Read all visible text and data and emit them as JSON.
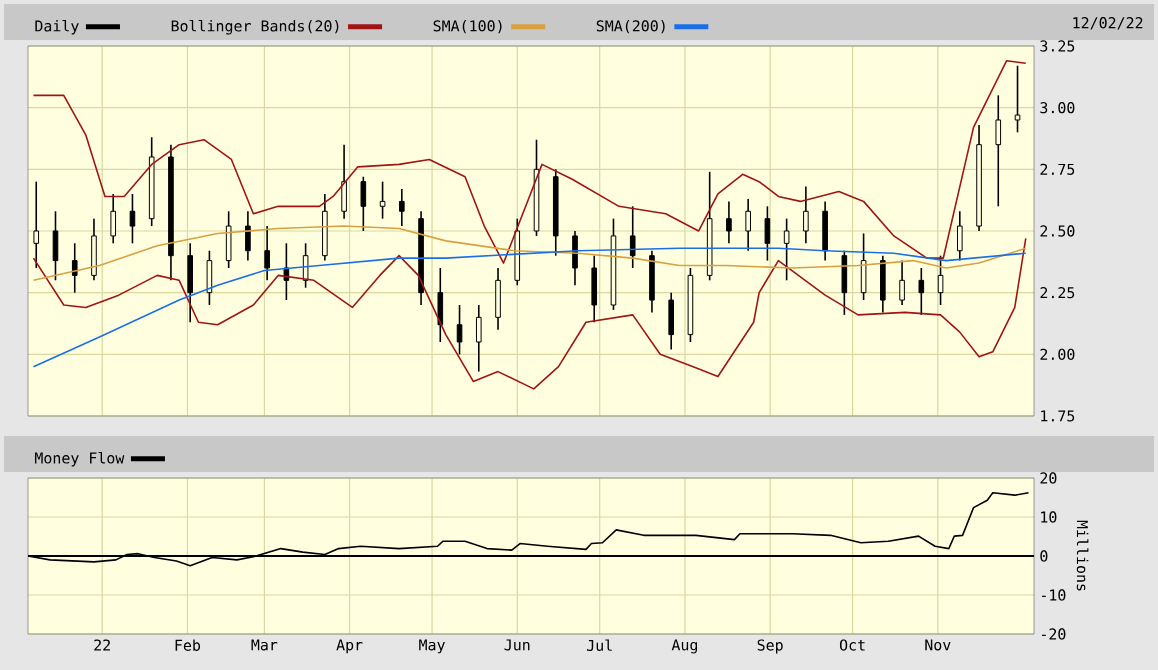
{
  "chart_data": [
    {
      "type": "candlestick",
      "annotations": [
        "12/02/22"
      ],
      "xlim": [
        "2021-12-05",
        "2022-12-06"
      ],
      "xticks": [
        {
          "value": "2022-01-01",
          "label": null
        },
        {
          "value": "2022-02-01",
          "label": null
        },
        {
          "value": "2022-03-01",
          "label": null
        },
        {
          "value": "2022-04-01",
          "label": null
        },
        {
          "value": "2022-05-01",
          "label": null
        },
        {
          "value": "2022-06-01",
          "label": null
        },
        {
          "value": "2022-07-01",
          "label": null
        },
        {
          "value": "2022-08-01",
          "label": null
        },
        {
          "value": "2022-09-01",
          "label": null
        },
        {
          "value": "2022-10-01",
          "label": null
        },
        {
          "value": "2022-11-01",
          "label": null
        }
      ],
      "ylim": [
        1.75,
        3.25
      ],
      "yticks": [
        {
          "value": 1.75,
          "label": "1.75"
        },
        {
          "value": 2,
          "label": "2.00"
        },
        {
          "value": 2.25,
          "label": "2.25"
        },
        {
          "value": 2.5,
          "label": "2.50"
        },
        {
          "value": 2.75,
          "label": "2.75"
        },
        {
          "value": 3,
          "label": "3.00"
        },
        {
          "value": 3.25,
          "label": "3.25"
        }
      ],
      "grid": true,
      "legend": "top",
      "tick_labels": "y",
      "series": [
        {
          "type": "candlestick",
          "name": "Daily",
          "color": "#000000",
          "x": [
            "2021-12-08",
            "2021-12-15",
            "2021-12-22",
            "2021-12-29",
            "2022-01-05",
            "2022-01-12",
            "2022-01-19",
            "2022-01-26",
            "2022-02-02",
            "2022-02-09",
            "2022-02-16",
            "2022-02-23",
            "2022-03-02",
            "2022-03-09",
            "2022-03-16",
            "2022-03-23",
            "2022-03-30",
            "2022-04-06",
            "2022-04-13",
            "2022-04-20",
            "2022-04-27",
            "2022-05-04",
            "2022-05-11",
            "2022-05-18",
            "2022-05-25",
            "2022-06-01",
            "2022-06-08",
            "2022-06-15",
            "2022-06-22",
            "2022-06-29",
            "2022-07-06",
            "2022-07-13",
            "2022-07-20",
            "2022-07-27",
            "2022-08-03",
            "2022-08-10",
            "2022-08-17",
            "2022-08-24",
            "2022-08-31",
            "2022-09-07",
            "2022-09-14",
            "2022-09-21",
            "2022-09-28",
            "2022-10-05",
            "2022-10-12",
            "2022-10-19",
            "2022-10-26",
            "2022-11-02",
            "2022-11-09",
            "2022-11-16",
            "2022-11-23",
            "2022-11-30"
          ],
          "ohlc": [
            [
              2.45,
              2.7,
              2.35,
              2.5
            ],
            [
              2.5,
              2.58,
              2.3,
              2.38
            ],
            [
              2.38,
              2.45,
              2.25,
              2.32
            ],
            [
              2.32,
              2.55,
              2.3,
              2.48
            ],
            [
              2.48,
              2.65,
              2.45,
              2.58
            ],
            [
              2.58,
              2.65,
              2.45,
              2.52
            ],
            [
              2.55,
              2.88,
              2.52,
              2.8
            ],
            [
              2.8,
              2.85,
              2.3,
              2.4
            ],
            [
              2.4,
              2.45,
              2.13,
              2.25
            ],
            [
              2.25,
              2.42,
              2.2,
              2.38
            ],
            [
              2.38,
              2.58,
              2.35,
              2.52
            ],
            [
              2.52,
              2.58,
              2.38,
              2.42
            ],
            [
              2.42,
              2.52,
              2.3,
              2.35
            ],
            [
              2.35,
              2.45,
              2.22,
              2.3
            ],
            [
              2.3,
              2.45,
              2.27,
              2.4
            ],
            [
              2.4,
              2.65,
              2.38,
              2.58
            ],
            [
              2.58,
              2.85,
              2.55,
              2.7
            ],
            [
              2.7,
              2.72,
              2.5,
              2.6
            ],
            [
              2.6,
              2.7,
              2.55,
              2.62
            ],
            [
              2.62,
              2.67,
              2.52,
              2.58
            ],
            [
              2.55,
              2.58,
              2.2,
              2.25
            ],
            [
              2.25,
              2.35,
              2.05,
              2.12
            ],
            [
              2.12,
              2.2,
              2.0,
              2.05
            ],
            [
              2.05,
              2.2,
              1.93,
              2.15
            ],
            [
              2.15,
              2.35,
              2.1,
              2.3
            ],
            [
              2.3,
              2.55,
              2.28,
              2.5
            ],
            [
              2.5,
              2.87,
              2.48,
              2.75
            ],
            [
              2.72,
              2.75,
              2.4,
              2.48
            ],
            [
              2.48,
              2.5,
              2.28,
              2.35
            ],
            [
              2.35,
              2.4,
              2.13,
              2.2
            ],
            [
              2.2,
              2.55,
              2.18,
              2.48
            ],
            [
              2.48,
              2.6,
              2.35,
              2.4
            ],
            [
              2.4,
              2.42,
              2.17,
              2.22
            ],
            [
              2.22,
              2.25,
              2.02,
              2.08
            ],
            [
              2.08,
              2.35,
              2.05,
              2.32
            ],
            [
              2.32,
              2.74,
              2.3,
              2.55
            ],
            [
              2.55,
              2.62,
              2.45,
              2.5
            ],
            [
              2.5,
              2.63,
              2.42,
              2.58
            ],
            [
              2.55,
              2.6,
              2.38,
              2.45
            ],
            [
              2.45,
              2.55,
              2.3,
              2.5
            ],
            [
              2.5,
              2.68,
              2.45,
              2.58
            ],
            [
              2.58,
              2.62,
              2.38,
              2.42
            ],
            [
              2.4,
              2.42,
              2.16,
              2.25
            ],
            [
              2.25,
              2.49,
              2.22,
              2.38
            ],
            [
              2.38,
              2.4,
              2.17,
              2.22
            ],
            [
              2.22,
              2.38,
              2.2,
              2.3
            ],
            [
              2.3,
              2.35,
              2.16,
              2.25
            ],
            [
              2.25,
              2.4,
              2.2,
              2.32
            ],
            [
              2.42,
              2.58,
              2.38,
              2.52
            ],
            [
              2.52,
              2.93,
              2.5,
              2.85
            ],
            [
              2.85,
              3.05,
              2.6,
              2.95
            ],
            [
              2.95,
              3.17,
              2.9,
              2.97
            ]
          ]
        },
        {
          "type": "line",
          "name": "Bollinger Bands(20)",
          "color": "#a01414",
          "x": [
            "2021-12-07",
            "2021-12-18",
            "2021-12-26",
            "2022-01-02",
            "2022-01-09",
            "2022-01-19",
            "2022-01-29",
            "2022-02-07",
            "2022-02-17",
            "2022-02-25",
            "2022-03-06",
            "2022-03-21",
            "2022-03-26",
            "2022-04-04",
            "2022-04-19",
            "2022-04-30",
            "2022-05-13",
            "2022-05-20",
            "2022-05-27",
            "2022-06-03",
            "2022-06-10",
            "2022-06-21",
            "2022-07-08",
            "2022-07-25",
            "2022-08-06",
            "2022-08-13",
            "2022-08-22",
            "2022-08-28",
            "2022-09-04",
            "2022-09-12",
            "2022-09-26",
            "2022-10-05",
            "2022-10-16",
            "2022-10-28",
            "2022-11-03",
            "2022-11-14",
            "2022-11-26",
            "2022-12-03"
          ],
          "values": [
            3.05,
            3.05,
            2.89,
            2.64,
            2.64,
            2.77,
            2.85,
            2.87,
            2.79,
            2.57,
            2.6,
            2.6,
            2.64,
            2.76,
            2.77,
            2.79,
            2.72,
            2.52,
            2.37,
            2.57,
            2.77,
            2.71,
            2.6,
            2.57,
            2.5,
            2.65,
            2.73,
            2.7,
            2.64,
            2.62,
            2.66,
            2.62,
            2.48,
            2.39,
            2.39,
            2.92,
            3.19,
            3.18
          ]
        },
        {
          "type": "line",
          "color": "#a01414",
          "x": [
            "2021-12-07",
            "2021-12-18",
            "2021-12-26",
            "2022-01-07",
            "2022-01-21",
            "2022-01-29",
            "2022-02-05",
            "2022-02-12",
            "2022-02-25",
            "2022-03-06",
            "2022-03-19",
            "2022-04-02",
            "2022-04-12",
            "2022-04-19",
            "2022-04-26",
            "2022-05-06",
            "2022-05-16",
            "2022-05-25",
            "2022-06-07",
            "2022-06-16",
            "2022-06-26",
            "2022-07-13",
            "2022-07-23",
            "2022-08-04",
            "2022-08-13",
            "2022-08-26",
            "2022-08-28",
            "2022-09-04",
            "2022-09-21",
            "2022-10-03",
            "2022-10-20",
            "2022-11-02",
            "2022-11-09",
            "2022-11-16",
            "2022-11-21",
            "2022-11-29",
            "2022-12-03"
          ],
          "values": [
            2.39,
            2.2,
            2.19,
            2.24,
            2.32,
            2.3,
            2.13,
            2.12,
            2.2,
            2.32,
            2.3,
            2.19,
            2.32,
            2.4,
            2.32,
            2.08,
            1.89,
            1.93,
            1.86,
            1.95,
            2.13,
            2.16,
            2.0,
            1.95,
            1.91,
            2.13,
            2.25,
            2.38,
            2.24,
            2.16,
            2.17,
            2.16,
            2.09,
            1.99,
            2.01,
            2.19,
            2.47
          ]
        },
        {
          "type": "line",
          "name": "SMA(100)",
          "color": "#d9a040",
          "x": [
            "2021-12-07",
            "2021-12-31",
            "2022-01-21",
            "2022-02-12",
            "2022-03-06",
            "2022-03-30",
            "2022-04-19",
            "2022-05-06",
            "2022-05-31",
            "2022-06-23",
            "2022-07-13",
            "2022-07-30",
            "2022-08-16",
            "2022-09-09",
            "2022-10-03",
            "2022-10-23",
            "2022-11-04",
            "2022-11-16",
            "2022-12-03"
          ],
          "values": [
            2.3,
            2.36,
            2.44,
            2.49,
            2.51,
            2.52,
            2.51,
            2.46,
            2.42,
            2.41,
            2.39,
            2.36,
            2.36,
            2.35,
            2.36,
            2.38,
            2.35,
            2.37,
            2.43
          ]
        },
        {
          "type": "line",
          "name": "SMA(200)",
          "color": "#1a6fe8",
          "x": [
            "2021-12-07",
            "2021-12-31",
            "2022-01-29",
            "2022-02-12",
            "2022-03-01",
            "2022-03-21",
            "2022-04-19",
            "2022-05-06",
            "2022-06-23",
            "2022-07-30",
            "2022-09-04",
            "2022-09-21",
            "2022-10-16",
            "2022-11-04",
            "2022-12-03"
          ],
          "values": [
            1.95,
            2.07,
            2.22,
            2.28,
            2.34,
            2.36,
            2.39,
            2.39,
            2.42,
            2.43,
            2.43,
            2.42,
            2.41,
            2.38,
            2.41
          ]
        }
      ]
    },
    {
      "type": "line",
      "xlim": [
        "2021-12-05",
        "2022-12-06"
      ],
      "xticks": [
        {
          "value": "2022-01-01",
          "label": "22"
        },
        {
          "value": "2022-02-01",
          "label": "Feb"
        },
        {
          "value": "2022-03-01",
          "label": "Mar"
        },
        {
          "value": "2022-04-01",
          "label": "Apr"
        },
        {
          "value": "2022-05-01",
          "label": "May"
        },
        {
          "value": "2022-06-01",
          "label": "Jun"
        },
        {
          "value": "2022-07-01",
          "label": "Jul"
        },
        {
          "value": "2022-08-01",
          "label": "Aug"
        },
        {
          "value": "2022-09-01",
          "label": "Sep"
        },
        {
          "value": "2022-10-01",
          "label": "Oct"
        },
        {
          "value": "2022-11-01",
          "label": "Nov"
        }
      ],
      "ylim": [
        -20,
        20
      ],
      "yticks": [
        -20,
        -10,
        0,
        10,
        20
      ],
      "ylabel": "Millions",
      "grid": true,
      "legend": "top",
      "ref_lines": [
        {
          "axis": "y",
          "value": 0,
          "color": "#000000"
        }
      ],
      "series": [
        {
          "name": "Money Flow",
          "color": "#000000",
          "x": [
            "2021-12-05",
            "2021-12-13",
            "2021-12-29",
            "2022-01-06",
            "2022-01-10",
            "2022-01-14",
            "2022-01-20",
            "2022-01-28",
            "2022-02-02",
            "2022-02-10",
            "2022-02-19",
            "2022-02-25",
            "2022-03-07",
            "2022-03-15",
            "2022-03-23",
            "2022-03-28",
            "2022-04-05",
            "2022-04-19",
            "2022-05-03",
            "2022-05-05",
            "2022-05-13",
            "2022-05-21",
            "2022-05-30",
            "2022-06-02",
            "2022-06-12",
            "2022-06-26",
            "2022-06-28",
            "2022-07-02",
            "2022-07-07",
            "2022-07-17",
            "2022-08-05",
            "2022-08-19",
            "2022-08-21",
            "2022-09-09",
            "2022-09-23",
            "2022-10-04",
            "2022-10-14",
            "2022-10-25",
            "2022-10-31",
            "2022-11-05",
            "2022-11-07",
            "2022-11-10",
            "2022-11-14",
            "2022-11-19",
            "2022-11-21",
            "2022-11-29",
            "2022-12-04"
          ],
          "values": [
            0,
            -1,
            -1.5,
            -1,
            0.4,
            0.6,
            -0.4,
            -1.3,
            -2.5,
            -0.4,
            -1,
            -0.2,
            1.9,
            1,
            0.4,
            1.9,
            2.5,
            1.9,
            2.5,
            3.8,
            3.8,
            1.9,
            1.5,
            3.2,
            2.5,
            1.7,
            3.2,
            3.4,
            6.7,
            5.3,
            5.3,
            4.2,
            5.7,
            5.7,
            5.3,
            3.4,
            3.8,
            5.1,
            2.5,
            1.9,
            5.1,
            5.3,
            12.4,
            14.3,
            16.2,
            15.6,
            16.2
          ]
        }
      ]
    }
  ]
}
